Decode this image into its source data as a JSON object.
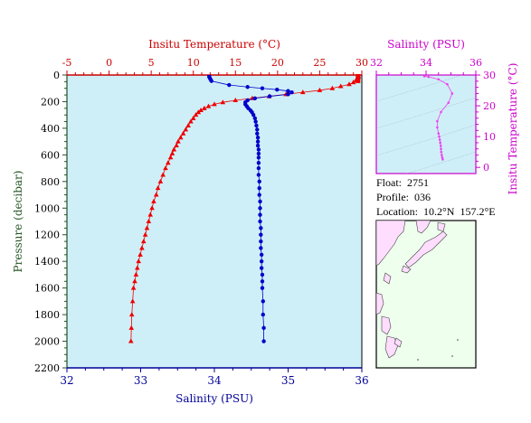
{
  "chart_data": [
    {
      "type": "line",
      "title": "",
      "top_axis": {
        "label": "Insitu Temperature (°C)",
        "range": [
          -5,
          30
        ],
        "ticks": [
          -5,
          0,
          5,
          10,
          15,
          20,
          25,
          30
        ],
        "color": "#cc0000"
      },
      "bottom_axis": {
        "label": "Salinity (PSU)",
        "range": [
          32,
          36
        ],
        "ticks": [
          32,
          33,
          34,
          35,
          36
        ],
        "color": "#000099"
      },
      "left_axis": {
        "label": "Pressure (decibar)",
        "range": [
          2200,
          0
        ],
        "inverted": true,
        "ticks": [
          0,
          200,
          400,
          600,
          800,
          1000,
          1200,
          1400,
          1600,
          1800,
          2000,
          2200
        ],
        "color": "#225522"
      },
      "grid": false,
      "series": [
        {
          "variable": "temperature",
          "color": "#ee0000",
          "marker": "triangle",
          "points": [
            [
              29.6,
              5
            ],
            [
              29.6,
              15
            ],
            [
              29.5,
              25
            ],
            [
              29.3,
              40
            ],
            [
              29.0,
              55
            ],
            [
              28.5,
              70
            ],
            [
              27.5,
              85
            ],
            [
              26.5,
              100
            ],
            [
              25.0,
              115
            ],
            [
              23.0,
              130
            ],
            [
              21.0,
              145
            ],
            [
              19.0,
              160
            ],
            [
              17.0,
              175
            ],
            [
              15.0,
              190
            ],
            [
              13.5,
              205
            ],
            [
              12.5,
              220
            ],
            [
              11.8,
              235
            ],
            [
              11.3,
              250
            ],
            [
              10.9,
              265
            ],
            [
              10.6,
              280
            ],
            [
              10.3,
              300
            ],
            [
              10.0,
              325
            ],
            [
              9.7,
              350
            ],
            [
              9.4,
              380
            ],
            [
              9.1,
              410
            ],
            [
              8.8,
              440
            ],
            [
              8.5,
              470
            ],
            [
              8.2,
              500
            ],
            [
              8.0,
              530
            ],
            [
              7.7,
              560
            ],
            [
              7.5,
              590
            ],
            [
              7.3,
              620
            ],
            [
              7.0,
              660
            ],
            [
              6.7,
              700
            ],
            [
              6.4,
              750
            ],
            [
              6.1,
              800
            ],
            [
              5.8,
              850
            ],
            [
              5.6,
              900
            ],
            [
              5.3,
              950
            ],
            [
              5.1,
              1000
            ],
            [
              4.9,
              1050
            ],
            [
              4.7,
              1100
            ],
            [
              4.5,
              1150
            ],
            [
              4.3,
              1200
            ],
            [
              4.1,
              1250
            ],
            [
              3.9,
              1300
            ],
            [
              3.7,
              1350
            ],
            [
              3.5,
              1400
            ],
            [
              3.35,
              1450
            ],
            [
              3.2,
              1500
            ],
            [
              3.05,
              1550
            ],
            [
              2.9,
              1600
            ],
            [
              2.8,
              1700
            ],
            [
              2.7,
              1800
            ],
            [
              2.65,
              1900
            ],
            [
              2.6,
              2000
            ]
          ]
        },
        {
          "variable": "salinity",
          "color": "#0000cc",
          "marker": "circle",
          "points": [
            [
              33.93,
              5
            ],
            [
              33.93,
              15
            ],
            [
              33.94,
              25
            ],
            [
              33.95,
              35
            ],
            [
              33.96,
              45
            ],
            [
              34.2,
              75
            ],
            [
              34.45,
              90
            ],
            [
              34.65,
              100
            ],
            [
              34.85,
              110
            ],
            [
              35.0,
              120
            ],
            [
              35.05,
              130
            ],
            [
              35.0,
              145
            ],
            [
              34.75,
              160
            ],
            [
              34.55,
              175
            ],
            [
              34.45,
              190
            ],
            [
              34.42,
              205
            ],
            [
              34.42,
              220
            ],
            [
              34.44,
              235
            ],
            [
              34.46,
              250
            ],
            [
              34.49,
              265
            ],
            [
              34.51,
              280
            ],
            [
              34.53,
              300
            ],
            [
              34.55,
              325
            ],
            [
              34.56,
              350
            ],
            [
              34.57,
              380
            ],
            [
              34.58,
              410
            ],
            [
              34.58,
              440
            ],
            [
              34.59,
              470
            ],
            [
              34.59,
              500
            ],
            [
              34.59,
              530
            ],
            [
              34.6,
              560
            ],
            [
              34.6,
              590
            ],
            [
              34.6,
              620
            ],
            [
              34.6,
              660
            ],
            [
              34.6,
              700
            ],
            [
              34.6,
              750
            ],
            [
              34.61,
              800
            ],
            [
              34.61,
              850
            ],
            [
              34.61,
              900
            ],
            [
              34.62,
              950
            ],
            [
              34.62,
              1000
            ],
            [
              34.62,
              1050
            ],
            [
              34.62,
              1100
            ],
            [
              34.63,
              1150
            ],
            [
              34.63,
              1200
            ],
            [
              34.63,
              1250
            ],
            [
              34.63,
              1300
            ],
            [
              34.64,
              1350
            ],
            [
              34.64,
              1400
            ],
            [
              34.64,
              1450
            ],
            [
              34.65,
              1500
            ],
            [
              34.65,
              1550
            ],
            [
              34.65,
              1600
            ],
            [
              34.66,
              1700
            ],
            [
              34.66,
              1800
            ],
            [
              34.67,
              1900
            ],
            [
              34.67,
              2000
            ]
          ]
        }
      ]
    },
    {
      "type": "scatter",
      "title": "",
      "top_axis": {
        "label": "Salinity (PSU)",
        "range": [
          32,
          36
        ],
        "ticks": [
          32,
          34,
          36
        ],
        "color": "#cc00cc"
      },
      "right_axis": {
        "label": "Insitu Temperature (°C)",
        "range": [
          -2,
          30
        ],
        "ticks": [
          0,
          10,
          20,
          30
        ],
        "color": "#cc00cc"
      },
      "grid": false,
      "series": [
        {
          "variable": "T-S",
          "color": "#ee44ee",
          "points": [
            [
              33.93,
              29.6
            ],
            [
              34.1,
              29.4
            ],
            [
              34.5,
              28.6
            ],
            [
              34.85,
              27.0
            ],
            [
              35.05,
              24.0
            ],
            [
              34.9,
              21.0
            ],
            [
              34.6,
              18.0
            ],
            [
              34.45,
              15.0
            ],
            [
              34.45,
              13.0
            ],
            [
              34.5,
              11.0
            ],
            [
              34.53,
              10.0
            ],
            [
              34.55,
              9.0
            ],
            [
              34.57,
              8.0
            ],
            [
              34.59,
              7.0
            ],
            [
              34.6,
              6.0
            ],
            [
              34.61,
              5.0
            ],
            [
              34.63,
              4.0
            ],
            [
              34.65,
              3.2
            ],
            [
              34.67,
              2.6
            ]
          ]
        }
      ]
    }
  ],
  "info": {
    "float_label": "Float:",
    "float_value": "2751",
    "profile_label": "Profile:",
    "profile_value": "036",
    "location_label": "Location:",
    "location_value": "10.2°N  157.2°E"
  }
}
